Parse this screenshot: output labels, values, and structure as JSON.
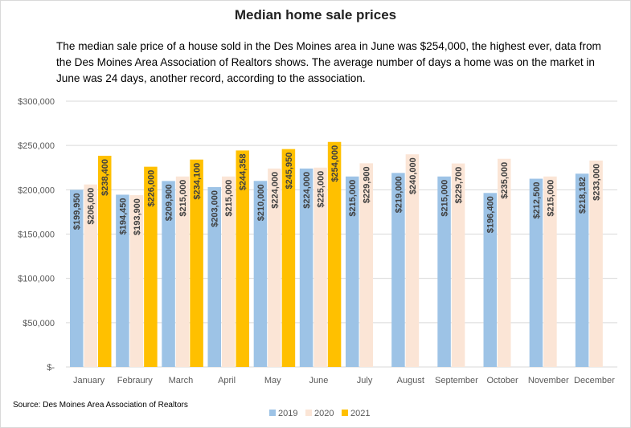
{
  "title": "Median home sale prices",
  "subtitle": "The median sale price of a house sold in the Des Moines area in June was $254,000,  the highest ever, data from the Des Moines Area Association of Realtors shows. The average number of days a home was on the market in June was 24 days, another record, according to the association.",
  "source": "Source: Des Moines Area Association of Realtors",
  "chart_data": {
    "type": "bar",
    "categories": [
      "January",
      "Febraury",
      "March",
      "April",
      "May",
      "June",
      "July",
      "August",
      "September",
      "October",
      "November",
      "December"
    ],
    "series": [
      {
        "name": "2019",
        "color": "#9dc3e6",
        "values": [
          199950,
          194450,
          209900,
          203000,
          210000,
          224000,
          215000,
          219000,
          215000,
          196400,
          212500,
          218182
        ],
        "labels": [
          "$199,950",
          "$194,450",
          "$209,900",
          "$203,000",
          "$210,000",
          "$224,000",
          "$215,000",
          "$219,000",
          "$215,000",
          "$196,400",
          "$212,500",
          "$218,182"
        ]
      },
      {
        "name": "2020",
        "color": "#fbe5d6",
        "values": [
          206000,
          193900,
          215000,
          215000,
          224000,
          225000,
          229900,
          240000,
          229700,
          235000,
          215000,
          233000
        ],
        "labels": [
          "$206,000",
          "$193,900",
          "$215,000",
          "$215,000",
          "$224,000",
          "$225,000",
          "$229,900",
          "$240,000",
          "$229,700",
          "$235,000",
          "$215,000",
          "$233,000"
        ]
      },
      {
        "name": "2021",
        "color": "#ffc000",
        "values": [
          238400,
          226000,
          234100,
          244358,
          245950,
          254000,
          null,
          null,
          null,
          null,
          null,
          null
        ],
        "labels": [
          "$238,400",
          "$226,000",
          "$234,100",
          "$244,358",
          "$245,950",
          "$254,000",
          null,
          null,
          null,
          null,
          null,
          null
        ]
      }
    ],
    "yticks": [
      "$-",
      "$50,000",
      "$100,000",
      "$150,000",
      "$200,000",
      "$250,000",
      "$300,000"
    ],
    "ylim": [
      0,
      300000
    ],
    "grid": true,
    "legend": "bottom"
  }
}
